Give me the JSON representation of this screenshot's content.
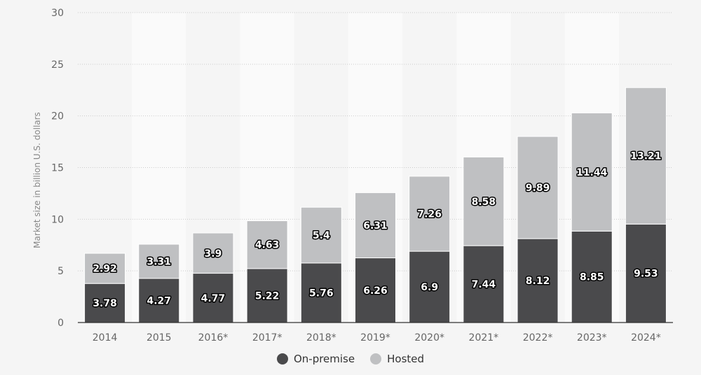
{
  "chart_data": {
    "type": "bar",
    "stacked": true,
    "categories": [
      "2014",
      "2015",
      "2016*",
      "2017*",
      "2018*",
      "2019*",
      "2020*",
      "2021*",
      "2022*",
      "2023*",
      "2024*"
    ],
    "series": [
      {
        "name": "On-premise",
        "color": "#4a4a4c",
        "values": [
          3.78,
          4.27,
          4.77,
          5.22,
          5.76,
          6.26,
          6.9,
          7.44,
          8.12,
          8.85,
          9.53
        ]
      },
      {
        "name": "Hosted",
        "color": "#bfc0c2",
        "values": [
          2.92,
          3.31,
          3.9,
          4.63,
          5.4,
          6.31,
          7.26,
          8.58,
          9.89,
          11.44,
          13.21
        ]
      }
    ],
    "value_labels": [
      [
        "3.78",
        "4.27",
        "4.77",
        "5.22",
        "5.76",
        "6.26",
        "6.9",
        "7.44",
        "8.12",
        "8.85",
        "9.53"
      ],
      [
        "2.92",
        "3.31",
        "3.9",
        "4.63",
        "5.4",
        "6.31",
        "7.26",
        "8.58",
        "9.89",
        "11.44",
        "13.21"
      ]
    ],
    "ylabel": "Market size in billion U.S. dollars",
    "ylim": [
      0,
      30
    ],
    "yticks": [
      "0",
      "5",
      "10",
      "15",
      "20",
      "25",
      "30"
    ],
    "grid": true,
    "legend_position": "bottom-center"
  }
}
